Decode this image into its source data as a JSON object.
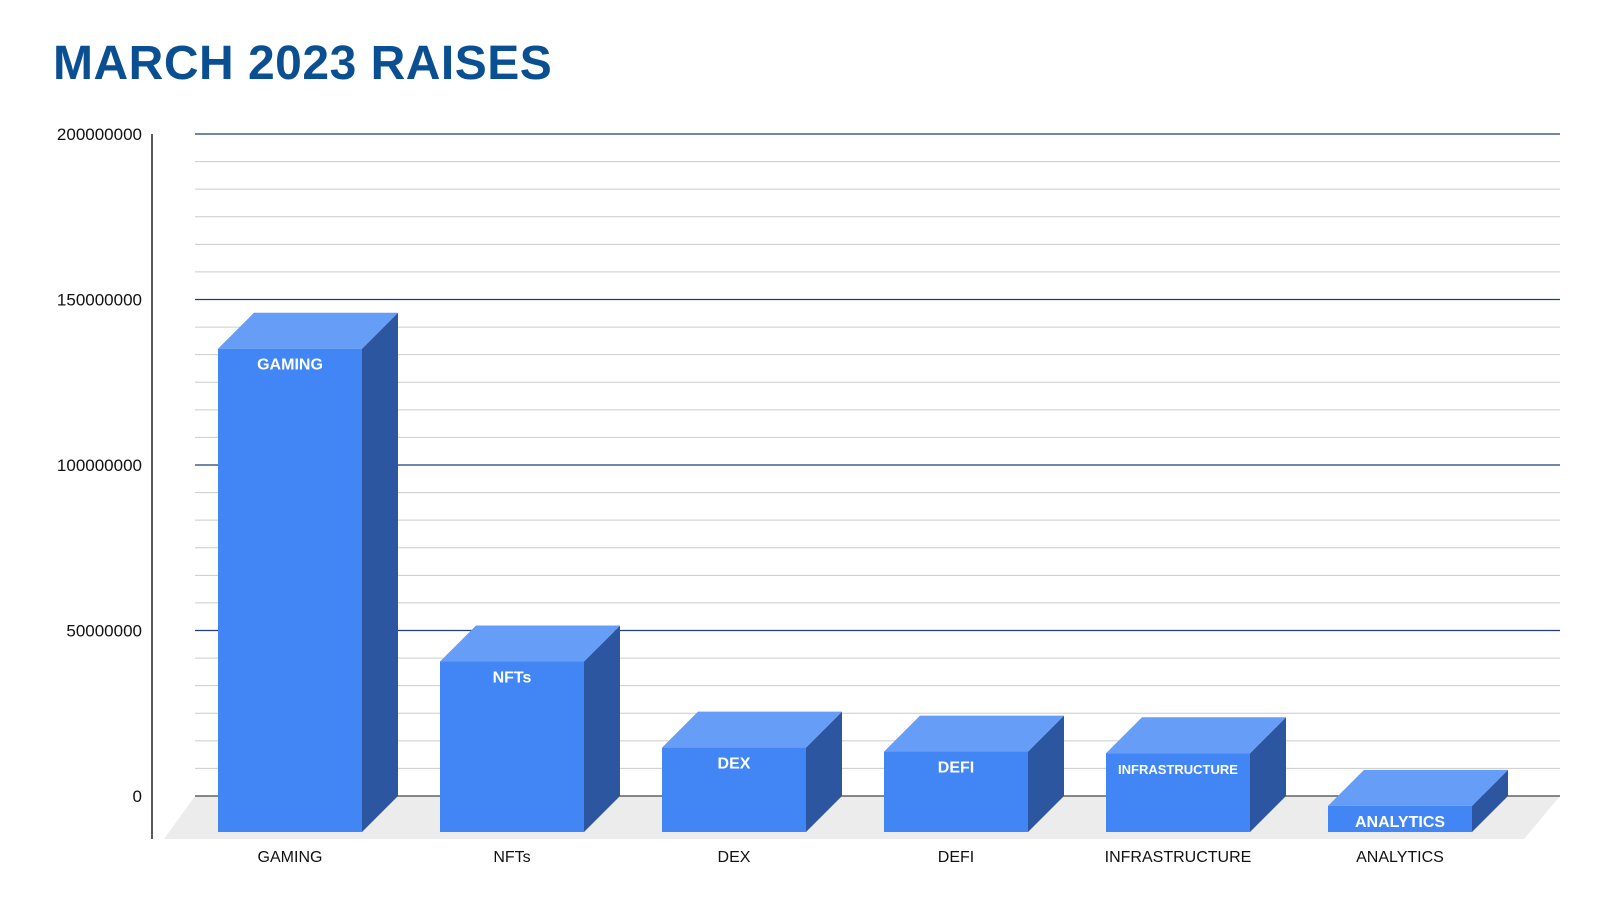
{
  "chart_data": {
    "type": "bar",
    "style": "3d",
    "title": "MARCH 2023 RAISES",
    "xlabel": "",
    "ylabel": "",
    "ylim": [
      0,
      200000000
    ],
    "yticks": [
      "0",
      "50000000",
      "100000000",
      "150000000",
      "200000000"
    ],
    "grid": true,
    "categories": [
      "GAMING",
      "NFTs",
      "DEX",
      "DEFI",
      "INFRASTRUCTURE",
      "ANALYTICS"
    ],
    "values": [
      146000000,
      51500000,
      25500000,
      24300000,
      23800000,
      7900000
    ],
    "data_labels": [
      "GAMING",
      "NFTs",
      "DEX",
      "DEFI",
      "INFRASTRUCTURE",
      "ANALYTICS"
    ],
    "colors": {
      "front": "#4285f4",
      "side": "#2c56a0",
      "top": "#669df6",
      "floor": "#ececec",
      "major_grid": "#1c3d7a",
      "minor_grid": "#cccccc"
    }
  }
}
